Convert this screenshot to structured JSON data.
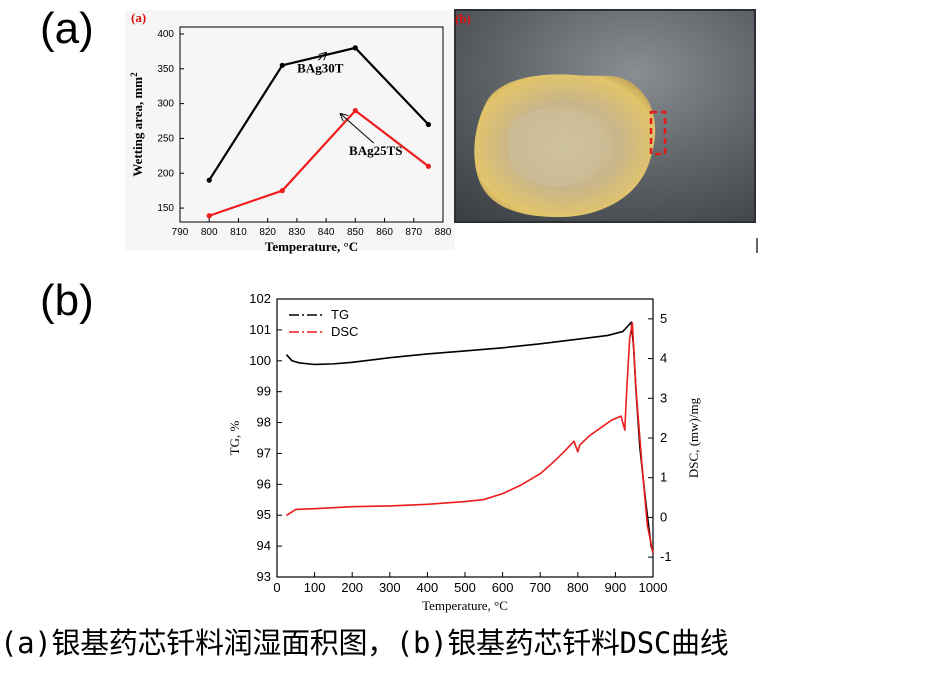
{
  "panel_labels": {
    "a": "(a)",
    "b": "(b)"
  },
  "caption": "(a)银基药芯钎料润湿面积图，(b)银基药芯钎料DSC曲线",
  "photo": {
    "label": "(b)"
  },
  "chart_data": [
    {
      "type": "line",
      "panel_tag": "(a)",
      "xlabel": "Temperature, °C",
      "ylabel": "Wetting area, mm",
      "ylabel_superscript": "2",
      "xlim": [
        790,
        880
      ],
      "ylim": [
        130,
        410
      ],
      "xticks": [
        790,
        800,
        810,
        820,
        830,
        840,
        850,
        860,
        870,
        880
      ],
      "yticks": [
        150,
        200,
        250,
        300,
        350,
        400
      ],
      "grid": false,
      "series": [
        {
          "name": "BAg30T",
          "color": "#000000",
          "x": [
            800,
            825,
            850,
            875
          ],
          "y": [
            190,
            355,
            380,
            270
          ]
        },
        {
          "name": "BAg25TS",
          "color": "#ee1c1c",
          "x": [
            800,
            825,
            850,
            875
          ],
          "y": [
            139,
            175,
            290,
            210
          ]
        }
      ],
      "annotations": [
        {
          "text": "BAg30T",
          "arrow_to": [
            840,
            373
          ],
          "text_at": [
            838,
            345
          ]
        },
        {
          "text": "BAg25TS",
          "arrow_to": [
            845,
            285
          ],
          "text_at": [
            857,
            226
          ]
        }
      ]
    },
    {
      "type": "line",
      "xlabel": "Temperature, °C",
      "ylabel": "TG, %",
      "ylabel_right": "DSC, (mw)/mg",
      "xlim": [
        0,
        1000
      ],
      "ylim": [
        93,
        102
      ],
      "ylim_right": [
        -1.5,
        5.5
      ],
      "xticks": [
        0,
        100,
        200,
        300,
        400,
        500,
        600,
        700,
        800,
        900,
        1000
      ],
      "yticks": [
        93,
        94,
        95,
        96,
        97,
        98,
        99,
        100,
        101,
        102
      ],
      "yticks_right": [
        -1,
        0,
        1,
        2,
        3,
        4,
        5
      ],
      "grid": false,
      "legend_position": "top-left",
      "series": [
        {
          "name": "TG",
          "color": "#000000",
          "axis": "left",
          "x": [
            25,
            40,
            60,
            100,
            150,
            200,
            300,
            400,
            500,
            600,
            700,
            800,
            880,
            920,
            935,
            942,
            948,
            955,
            965,
            980,
            995,
            1000
          ],
          "y": [
            100.2,
            100.0,
            99.93,
            99.88,
            99.9,
            99.95,
            100.1,
            100.22,
            100.32,
            100.42,
            100.55,
            100.7,
            100.82,
            100.95,
            101.15,
            101.25,
            100.5,
            99.0,
            97.2,
            95.5,
            94.0,
            93.8
          ]
        },
        {
          "name": "DSC",
          "color": "#ee1c1c",
          "axis": "right",
          "x": [
            25,
            50,
            100,
            200,
            300,
            400,
            500,
            550,
            600,
            650,
            700,
            730,
            760,
            790,
            800,
            805,
            830,
            860,
            890,
            915,
            925,
            930,
            938,
            945,
            955,
            970,
            985,
            1000
          ],
          "y": [
            0.05,
            0.2,
            0.22,
            0.27,
            0.29,
            0.33,
            0.4,
            0.45,
            0.6,
            0.82,
            1.1,
            1.35,
            1.62,
            1.92,
            1.65,
            1.82,
            2.05,
            2.25,
            2.45,
            2.55,
            2.2,
            3.2,
            4.5,
            4.9,
            3.2,
            1.4,
            -0.2,
            -0.9
          ]
        }
      ]
    }
  ]
}
